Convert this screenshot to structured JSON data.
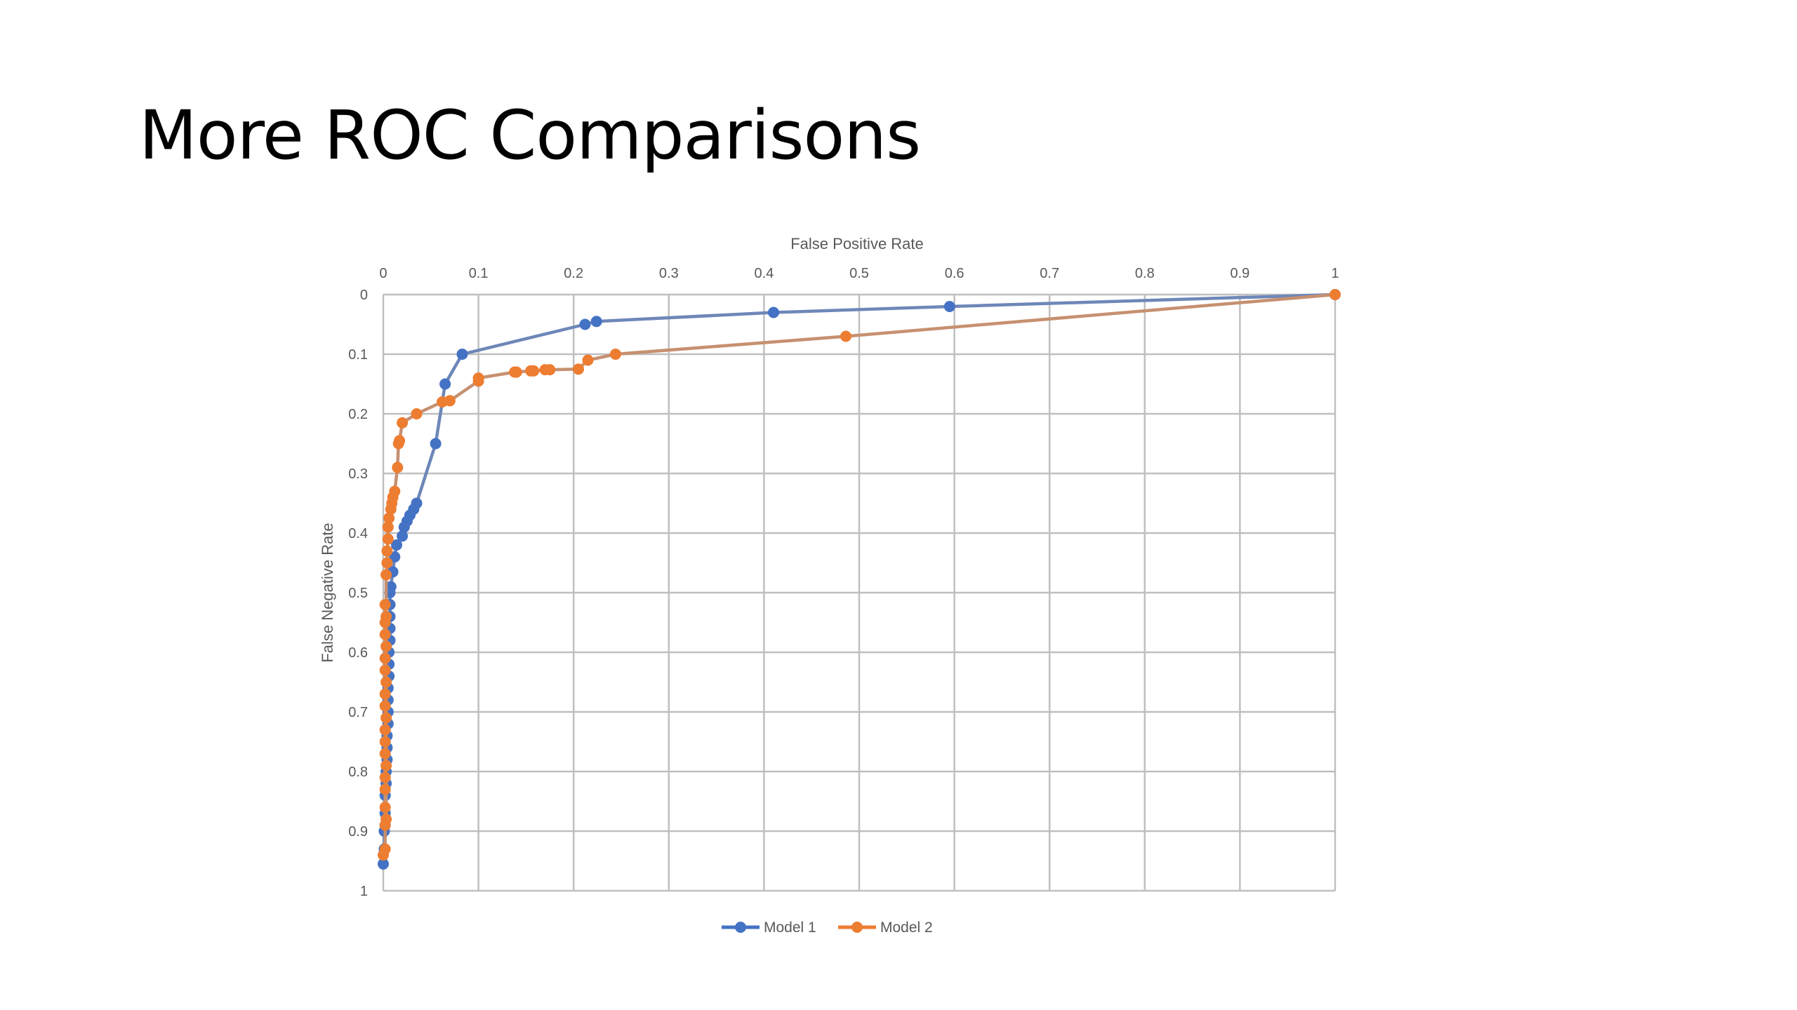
{
  "slide": {
    "title": "More ROC Comparisons"
  },
  "chart_data": {
    "type": "scatter",
    "title": "",
    "xlabel": "False Positive Rate",
    "ylabel": "False Negative Rate",
    "xlim": [
      0,
      1
    ],
    "ylim": [
      0,
      1
    ],
    "y_inverted": true,
    "x_axis_position": "top",
    "grid": true,
    "x_ticks": [
      "0",
      "0.1",
      "0.2",
      "0.3",
      "0.4",
      "0.5",
      "0.6",
      "0.7",
      "0.8",
      "0.9",
      "1"
    ],
    "y_ticks": [
      "0",
      "0.1",
      "0.2",
      "0.3",
      "0.4",
      "0.5",
      "0.6",
      "0.7",
      "0.8",
      "0.9",
      "1"
    ],
    "legend_position": "bottom",
    "colors": {
      "model1": "#4472C4",
      "model2": "#ED7D31",
      "model1_line": "#6E87B8",
      "model2_line": "#C69070",
      "grid": "#BFBFBF"
    },
    "series": [
      {
        "name": "Model 1",
        "color_key": "model1",
        "points": [
          [
            0,
            0.955
          ],
          [
            0.001,
            0.93
          ],
          [
            0.001,
            0.9
          ],
          [
            0.002,
            0.89
          ],
          [
            0.002,
            0.87
          ],
          [
            0.002,
            0.84
          ],
          [
            0.003,
            0.82
          ],
          [
            0.003,
            0.8
          ],
          [
            0.004,
            0.78
          ],
          [
            0.004,
            0.76
          ],
          [
            0.004,
            0.74
          ],
          [
            0.005,
            0.72
          ],
          [
            0.005,
            0.7
          ],
          [
            0.005,
            0.68
          ],
          [
            0.005,
            0.66
          ],
          [
            0.006,
            0.64
          ],
          [
            0.006,
            0.62
          ],
          [
            0.006,
            0.6
          ],
          [
            0.007,
            0.58
          ],
          [
            0.007,
            0.56
          ],
          [
            0.007,
            0.54
          ],
          [
            0.007,
            0.52
          ],
          [
            0.007,
            0.5
          ],
          [
            0.008,
            0.49
          ],
          [
            0.01,
            0.465
          ],
          [
            0.012,
            0.44
          ],
          [
            0.014,
            0.42
          ],
          [
            0.02,
            0.405
          ],
          [
            0.022,
            0.39
          ],
          [
            0.025,
            0.38
          ],
          [
            0.028,
            0.37
          ],
          [
            0.032,
            0.36
          ],
          [
            0.035,
            0.35
          ],
          [
            0.055,
            0.25
          ],
          [
            0.065,
            0.15
          ],
          [
            0.083,
            0.1
          ],
          [
            0.212,
            0.05
          ],
          [
            0.224,
            0.045
          ],
          [
            0.41,
            0.03
          ],
          [
            0.595,
            0.02
          ],
          [
            1,
            0
          ]
        ]
      },
      {
        "name": "Model 2",
        "color_key": "model2",
        "points": [
          [
            0,
            0.94
          ],
          [
            0.002,
            0.93
          ],
          [
            0.002,
            0.89
          ],
          [
            0.003,
            0.88
          ],
          [
            0.002,
            0.86
          ],
          [
            0.002,
            0.83
          ],
          [
            0.002,
            0.81
          ],
          [
            0.003,
            0.79
          ],
          [
            0.002,
            0.77
          ],
          [
            0.002,
            0.75
          ],
          [
            0.002,
            0.73
          ],
          [
            0.003,
            0.71
          ],
          [
            0.002,
            0.69
          ],
          [
            0.002,
            0.67
          ],
          [
            0.003,
            0.65
          ],
          [
            0.002,
            0.63
          ],
          [
            0.002,
            0.61
          ],
          [
            0.003,
            0.59
          ],
          [
            0.002,
            0.57
          ],
          [
            0.002,
            0.55
          ],
          [
            0.003,
            0.54
          ],
          [
            0.002,
            0.52
          ],
          [
            0.003,
            0.47
          ],
          [
            0.004,
            0.45
          ],
          [
            0.004,
            0.43
          ],
          [
            0.005,
            0.41
          ],
          [
            0.005,
            0.39
          ],
          [
            0.006,
            0.375
          ],
          [
            0.008,
            0.36
          ],
          [
            0.009,
            0.35
          ],
          [
            0.01,
            0.34
          ],
          [
            0.012,
            0.33
          ],
          [
            0.015,
            0.29
          ],
          [
            0.016,
            0.25
          ],
          [
            0.017,
            0.245
          ],
          [
            0.02,
            0.215
          ],
          [
            0.035,
            0.2
          ],
          [
            0.062,
            0.18
          ],
          [
            0.07,
            0.178
          ],
          [
            0.1,
            0.145
          ],
          [
            0.1,
            0.14
          ],
          [
            0.138,
            0.13
          ],
          [
            0.14,
            0.13
          ],
          [
            0.155,
            0.128
          ],
          [
            0.158,
            0.128
          ],
          [
            0.17,
            0.126
          ],
          [
            0.175,
            0.126
          ],
          [
            0.205,
            0.125
          ],
          [
            0.215,
            0.11
          ],
          [
            0.244,
            0.1
          ],
          [
            0.486,
            0.07
          ],
          [
            1,
            0
          ]
        ]
      }
    ]
  }
}
